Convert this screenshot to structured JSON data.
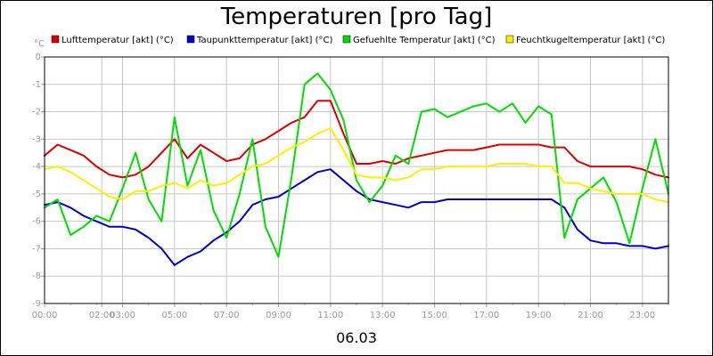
{
  "chart_data": {
    "type": "line",
    "title": "Temperaturen [pro Tag]",
    "date_label": "06.03",
    "y_unit": "°C",
    "ylim": [
      -9,
      0
    ],
    "y_ticks": [
      "0",
      "-1",
      "-2",
      "-3",
      "-4",
      "-5",
      "-6",
      "-7",
      "-8",
      "-9"
    ],
    "xlim": [
      0,
      24
    ],
    "x_ticks": [
      {
        "t": 0,
        "label": "00:00"
      },
      {
        "t": 2.2,
        "label": "02:00"
      },
      {
        "t": 3,
        "label": "03:00"
      },
      {
        "t": 5,
        "label": "05:00"
      },
      {
        "t": 7,
        "label": "07:00"
      },
      {
        "t": 9,
        "label": "09:00"
      },
      {
        "t": 11,
        "label": "11:00"
      },
      {
        "t": 13,
        "label": "13:00"
      },
      {
        "t": 15,
        "label": "15:00"
      },
      {
        "t": 17,
        "label": "17:00"
      },
      {
        "t": 19,
        "label": "19:00"
      },
      {
        "t": 21,
        "label": "21:00"
      },
      {
        "t": 23,
        "label": "23:00"
      }
    ],
    "grid": true,
    "legend": "top",
    "series": [
      {
        "name": "Lufttemperatur [akt] (°C)",
        "color": "#dd0000",
        "x": [
          0,
          0.5,
          1,
          1.5,
          2,
          2.5,
          3,
          3.5,
          4,
          4.5,
          5,
          5.5,
          6,
          6.5,
          7,
          7.5,
          8,
          8.5,
          9,
          9.5,
          10,
          10.5,
          11,
          11.5,
          12,
          12.5,
          13,
          13.5,
          14,
          14.5,
          15,
          15.5,
          16,
          16.5,
          17,
          17.5,
          18,
          18.5,
          19,
          19.5,
          20,
          20.5,
          21,
          21.5,
          22,
          22.5,
          23,
          23.5,
          24
        ],
        "values": [
          -3.6,
          -3.2,
          -3.4,
          -3.6,
          -4.0,
          -4.3,
          -4.4,
          -4.3,
          -4.0,
          -3.5,
          -3.0,
          -3.7,
          -3.2,
          -3.5,
          -3.8,
          -3.7,
          -3.2,
          -3.0,
          -2.7,
          -2.4,
          -2.2,
          -1.6,
          -1.6,
          -2.8,
          -3.9,
          -3.9,
          -3.8,
          -3.9,
          -3.7,
          -3.6,
          -3.5,
          -3.4,
          -3.4,
          -3.4,
          -3.3,
          -3.2,
          -3.2,
          -3.2,
          -3.2,
          -3.3,
          -3.3,
          -3.8,
          -4.0,
          -4.0,
          -4.0,
          -4.0,
          -4.1,
          -4.3,
          -4.4
        ]
      },
      {
        "name": "Taupunkttemperatur [akt] (°C)",
        "color": "#0000cc",
        "x": [
          0,
          0.5,
          1,
          1.5,
          2,
          2.5,
          3,
          3.5,
          4,
          4.5,
          5,
          5.5,
          6,
          6.5,
          7,
          7.5,
          8,
          8.5,
          9,
          9.5,
          10,
          10.5,
          11,
          11.5,
          12,
          12.5,
          13,
          13.5,
          14,
          14.5,
          15,
          15.5,
          16,
          16.5,
          17,
          17.5,
          18,
          18.5,
          19,
          19.5,
          20,
          20.5,
          21,
          21.5,
          22,
          22.5,
          23,
          23.5,
          24
        ],
        "values": [
          -5.4,
          -5.3,
          -5.5,
          -5.8,
          -6.0,
          -6.2,
          -6.2,
          -6.3,
          -6.6,
          -7.0,
          -7.6,
          -7.3,
          -7.1,
          -6.7,
          -6.4,
          -6.0,
          -5.4,
          -5.2,
          -5.1,
          -4.8,
          -4.5,
          -4.2,
          -4.1,
          -4.5,
          -4.9,
          -5.2,
          -5.3,
          -5.4,
          -5.5,
          -5.3,
          -5.3,
          -5.2,
          -5.2,
          -5.2,
          -5.2,
          -5.2,
          -5.2,
          -5.2,
          -5.2,
          -5.2,
          -5.5,
          -6.3,
          -6.7,
          -6.8,
          -6.8,
          -6.9,
          -6.9,
          -7.0,
          -6.9
        ]
      },
      {
        "name": "Gefuehlte Temperatur [akt] (°C)",
        "color": "#00dd00",
        "x": [
          0,
          0.5,
          1,
          1.5,
          2,
          2.5,
          3,
          3.5,
          4,
          4.5,
          5,
          5.5,
          6,
          6.5,
          7,
          7.5,
          8,
          8.5,
          9,
          9.5,
          10,
          10.5,
          11,
          11.5,
          12,
          12.5,
          13,
          13.5,
          14,
          14.5,
          15,
          15.5,
          16,
          16.5,
          17,
          17.5,
          18,
          18.5,
          19,
          19.5,
          20,
          20.5,
          21,
          21.5,
          22,
          22.5,
          23,
          23.5,
          24
        ],
        "values": [
          -5.5,
          -5.2,
          -6.5,
          -6.2,
          -5.8,
          -6.0,
          -4.8,
          -3.5,
          -5.2,
          -6.0,
          -2.2,
          -4.7,
          -3.4,
          -5.6,
          -6.6,
          -5.0,
          -3.0,
          -6.2,
          -7.3,
          -4.4,
          -1.0,
          -0.6,
          -1.2,
          -2.3,
          -4.5,
          -5.3,
          -4.7,
          -3.6,
          -3.9,
          -2.0,
          -1.9,
          -2.2,
          -2.0,
          -1.8,
          -1.7,
          -2.0,
          -1.7,
          -2.4,
          -1.8,
          -2.1,
          -6.6,
          -5.2,
          -4.8,
          -4.4,
          -5.3,
          -6.8,
          -4.8,
          -3.0,
          -5.0
        ]
      },
      {
        "name": "Feuchtkugeltemperatur [akt] (°C)",
        "color": "#ffee00",
        "x": [
          0,
          0.5,
          1,
          1.5,
          2,
          2.5,
          3,
          3.5,
          4,
          4.5,
          5,
          5.5,
          6,
          6.5,
          7,
          7.5,
          8,
          8.5,
          9,
          9.5,
          10,
          10.5,
          11,
          11.5,
          12,
          12.5,
          13,
          13.5,
          14,
          14.5,
          15,
          15.5,
          16,
          16.5,
          17,
          17.5,
          18,
          18.5,
          19,
          19.5,
          20,
          20.5,
          21,
          21.5,
          22,
          22.5,
          23,
          23.5,
          24
        ],
        "values": [
          -4.1,
          -4.0,
          -4.2,
          -4.5,
          -4.8,
          -5.1,
          -5.2,
          -4.9,
          -4.9,
          -4.7,
          -4.6,
          -4.8,
          -4.5,
          -4.7,
          -4.6,
          -4.3,
          -4.0,
          -3.9,
          -3.6,
          -3.3,
          -3.1,
          -2.8,
          -2.6,
          -3.4,
          -4.3,
          -4.4,
          -4.4,
          -4.5,
          -4.4,
          -4.1,
          -4.1,
          -4.0,
          -4.0,
          -4.0,
          -4.0,
          -3.9,
          -3.9,
          -3.9,
          -4.0,
          -4.0,
          -4.6,
          -4.6,
          -4.8,
          -4.9,
          -5.0,
          -5.0,
          -5.0,
          -5.2,
          -5.3
        ]
      }
    ]
  }
}
